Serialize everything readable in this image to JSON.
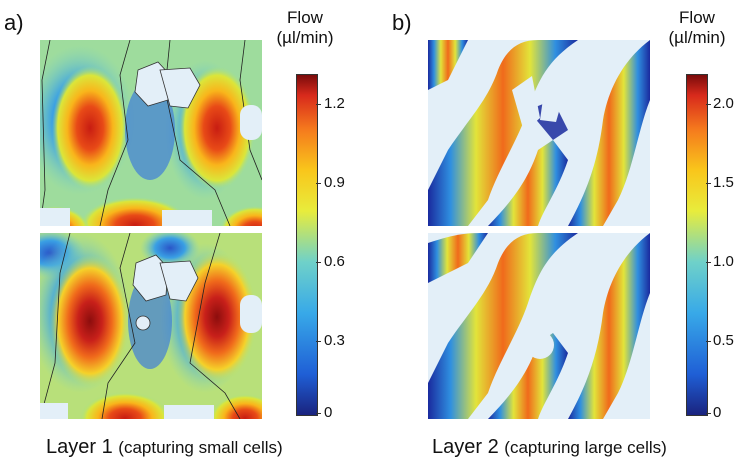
{
  "panel_a": {
    "letter": "a)",
    "colorbar": {
      "title": "Flow",
      "unit": "(µl/min)",
      "ticks": [
        "1.2",
        "0.9",
        "0.6",
        "0.3",
        "0"
      ]
    },
    "caption_main": "Layer 1",
    "caption_sub": "(capturing small cells)"
  },
  "panel_b": {
    "letter": "b)",
    "colorbar": {
      "title": "Flow",
      "unit": "(µl/min)",
      "ticks": [
        "2.0",
        "1.5",
        "1.0",
        "0.5",
        "0"
      ]
    },
    "caption_main": "Layer 2",
    "caption_sub": "(capturing large cells)"
  },
  "colors": {
    "jet": [
      "#1a237e",
      "#1f5fd6",
      "#38a9e8",
      "#6fd1c9",
      "#e8ec3c",
      "#f9c61b",
      "#f57a1d",
      "#d82a1c",
      "#7a0b0b"
    ],
    "obstacle": "#e3eff8"
  }
}
